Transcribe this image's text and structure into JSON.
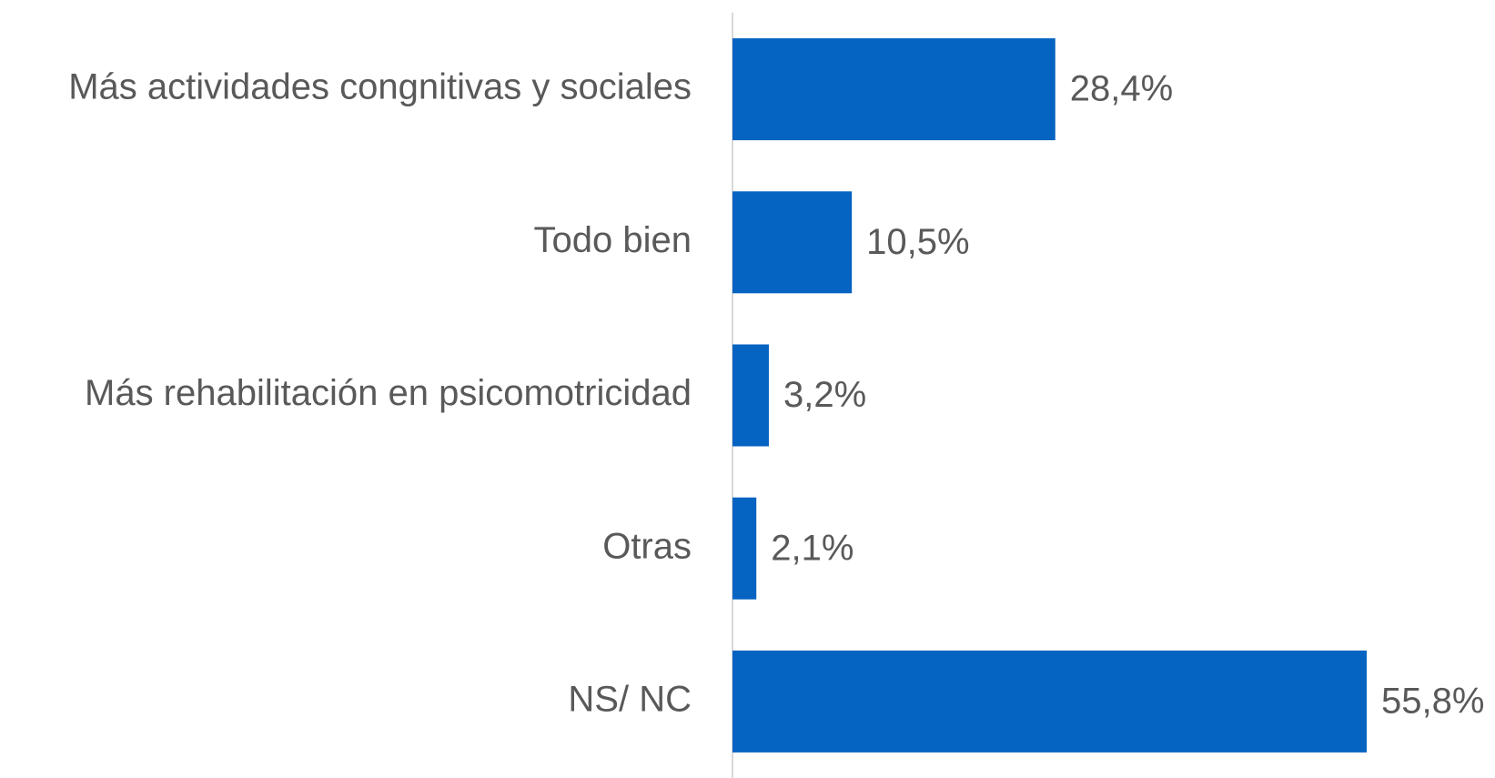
{
  "chart_data": {
    "type": "bar",
    "orientation": "horizontal",
    "categories": [
      "Más actividades congnitivas y sociales",
      "Todo bien",
      "Más rehabilitación en psicomotricidad",
      "Otras",
      "NS/ NC"
    ],
    "values": [
      28.4,
      10.5,
      3.2,
      2.1,
      55.8
    ],
    "value_labels": [
      "28,4%",
      "10,5%",
      "3,2%",
      "2,1%",
      "55,8%"
    ],
    "color": "#0563c1"
  }
}
